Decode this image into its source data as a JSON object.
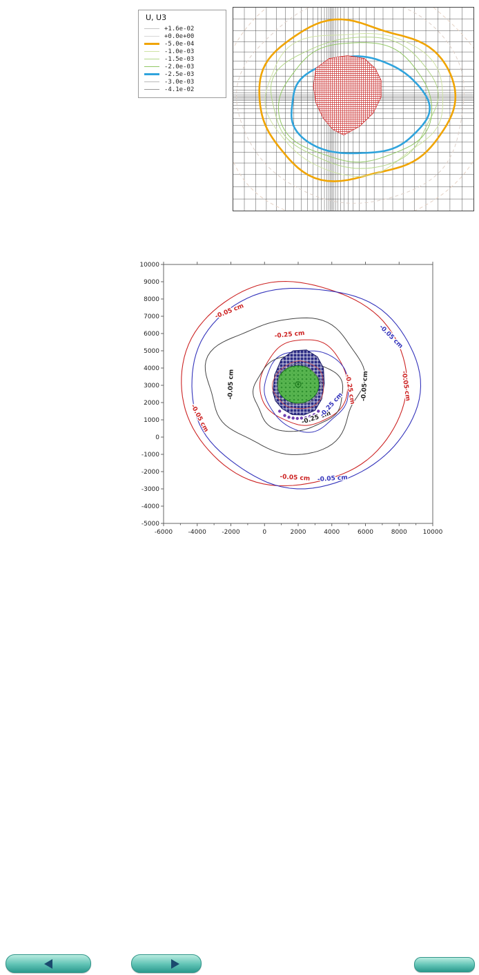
{
  "chart_data": [
    {
      "id": "fem-u3-contour-plot",
      "type": "contour",
      "legend_title": "U, U3",
      "levels": [
        {
          "label": "+1.6e-02",
          "color": "#c4c4c4",
          "weight": 1
        },
        {
          "label": "+0.0e+00",
          "color": "#d6d6d6",
          "weight": 1
        },
        {
          "label": "-5.0e-04",
          "color": "#f0a400",
          "weight": 3
        },
        {
          "label": "-1.0e-03",
          "color": "#cfe3a4",
          "weight": 1
        },
        {
          "label": "-1.5e-03",
          "color": "#b2d687",
          "weight": 1
        },
        {
          "label": "-2.0e-03",
          "color": "#90c763",
          "weight": 1
        },
        {
          "label": "-2.5e-03",
          "color": "#2fa3dc",
          "weight": 3
        },
        {
          "label": "-3.0e-03",
          "color": "#b9b9b9",
          "weight": 1
        },
        {
          "label": "-4.1e-02",
          "color": "#999999",
          "weight": 1
        }
      ],
      "mesh": {
        "v_lines": 36,
        "h_lines": 30,
        "cluster": 0.13,
        "v_center": 0.45,
        "h_center": 0.47,
        "color": "#3c3c3c"
      },
      "contours": [
        {
          "cx": 0.5,
          "cy": 0.47,
          "rx": 0.56,
          "ry": 0.6,
          "color": "#e6d2c4",
          "width": 1,
          "dash": "5 4",
          "wobble": 0.015,
          "seed": 1
        },
        {
          "cx": 0.5,
          "cy": 0.46,
          "rx": 0.47,
          "ry": 0.5,
          "color": "#ded0c8",
          "width": 1,
          "dash": "5 4",
          "wobble": 0.02,
          "seed": 11
        },
        {
          "cx": 0.505,
          "cy": 0.455,
          "rx": 0.405,
          "ry": 0.385,
          "color": "#f0a400",
          "width": 2.6,
          "wobble": 0.04,
          "seed": 2
        },
        {
          "cx": 0.505,
          "cy": 0.46,
          "rx": 0.368,
          "ry": 0.348,
          "color": "#cfe3a4",
          "width": 1,
          "wobble": 0.04,
          "seed": 3
        },
        {
          "cx": 0.507,
          "cy": 0.463,
          "rx": 0.342,
          "ry": 0.32,
          "color": "#b2d687",
          "width": 1,
          "wobble": 0.035,
          "seed": 4
        },
        {
          "cx": 0.51,
          "cy": 0.468,
          "rx": 0.316,
          "ry": 0.292,
          "color": "#90c763",
          "width": 1,
          "wobble": 0.03,
          "seed": 6
        },
        {
          "cx": 0.52,
          "cy": 0.487,
          "rx": 0.285,
          "ry": 0.237,
          "color": "#2fa3dc",
          "width": 2.6,
          "wobble": 0.028,
          "seed": 7
        }
      ],
      "red_region": {
        "color": "#cc3333",
        "points": [
          [
            0.345,
            0.3
          ],
          [
            0.4,
            0.252
          ],
          [
            0.475,
            0.238
          ],
          [
            0.545,
            0.252
          ],
          [
            0.59,
            0.3
          ],
          [
            0.615,
            0.36
          ],
          [
            0.615,
            0.44
          ],
          [
            0.582,
            0.52
          ],
          [
            0.525,
            0.585
          ],
          [
            0.46,
            0.627
          ],
          [
            0.415,
            0.6
          ],
          [
            0.375,
            0.545
          ],
          [
            0.345,
            0.47
          ],
          [
            0.334,
            0.388
          ]
        ]
      }
    },
    {
      "id": "settlement-contour-map",
      "type": "contour",
      "xlim": [
        -6000,
        10000
      ],
      "ylim": [
        -5000,
        10000
      ],
      "xticks": [
        -6000,
        -4000,
        -2000,
        0,
        2000,
        4000,
        6000,
        8000,
        10000
      ],
      "xticks_minor": [
        -5000,
        -3000,
        -1000,
        1000,
        3000,
        5000,
        7000,
        9000
      ],
      "yticks": [
        10000,
        9000,
        8000,
        7000,
        6000,
        5000,
        4000,
        3000,
        2000,
        1000,
        0,
        -1000,
        -2000,
        -3000,
        -4000,
        -5000
      ],
      "contours": [
        {
          "cx": 1700,
          "cy": 3100,
          "rx": 6700,
          "ry": 5900,
          "color": "#cc2222",
          "width": 1.1,
          "wobble": 0.012,
          "seed": 2,
          "layer": 0
        },
        {
          "cx": 2400,
          "cy": 2950,
          "rx": 6800,
          "ry": 5800,
          "color": "#3333bb",
          "width": 1.1,
          "wobble": 0.016,
          "seed": 9,
          "layer": 0
        },
        {
          "cx": 1300,
          "cy": 3050,
          "rx": 4600,
          "ry": 3900,
          "color": "#444444",
          "width": 1,
          "wobble": 0.06,
          "seed": 4,
          "layer": 0
        },
        {
          "cx": 2350,
          "cy": 3150,
          "rx": 2600,
          "ry": 2480,
          "color": "#cc2222",
          "width": 1,
          "wobble": 0.025,
          "seed": 6,
          "layer": 0
        },
        {
          "cx": 2500,
          "cy": 2750,
          "rx": 2500,
          "ry": 2350,
          "color": "#3333bb",
          "width": 1,
          "wobble": 0.035,
          "seed": 3,
          "layer": 0
        },
        {
          "cx": 1950,
          "cy": 2500,
          "rx": 2650,
          "ry": 2150,
          "color": "#444444",
          "width": 1,
          "wobble": 0.045,
          "seed": 8,
          "layer": 0
        },
        {
          "cx": 2050,
          "cy": 3000,
          "rx": 1520,
          "ry": 1380,
          "color": "#cc5555",
          "width": 0.9,
          "wobble": 0.03,
          "seed": 5,
          "layer": 1
        },
        {
          "cx": 2020,
          "cy": 3030,
          "rx": 1300,
          "ry": 1160,
          "color": "#777777",
          "width": 0.9,
          "wobble": 0.05,
          "seed": 7,
          "layer": 1
        }
      ],
      "regions": {
        "navy_polygon": [
          [
            500,
            2600
          ],
          [
            600,
            3600
          ],
          [
            1000,
            4500
          ],
          [
            1700,
            5000
          ],
          [
            2500,
            5050
          ],
          [
            3150,
            4650
          ],
          [
            3500,
            4000
          ],
          [
            3550,
            3100
          ],
          [
            3400,
            2200
          ],
          [
            3000,
            1550
          ],
          [
            2350,
            1280
          ],
          [
            1650,
            1300
          ],
          [
            1050,
            1650
          ],
          [
            650,
            2100
          ]
        ],
        "navy_color": "#2b2b85",
        "green_ellipse": {
          "cx": 2000,
          "cy": 3050,
          "rx": 1230,
          "ry": 1080
        },
        "green_color": "#57b44f",
        "green_dot_color": "#2f8f2f",
        "center_marker": {
          "x": 2000,
          "y": 3050
        },
        "purple_dots": [
          [
            1200,
            1250
          ],
          [
            1450,
            1150
          ],
          [
            1700,
            1100
          ],
          [
            1950,
            1080
          ],
          [
            2200,
            1100
          ],
          [
            2450,
            1120
          ],
          [
            2700,
            1200
          ],
          [
            2950,
            1300
          ],
          [
            900,
            1500
          ],
          [
            3200,
            1500
          ]
        ],
        "purple_color": "#7040b0"
      },
      "labels": [
        {
          "text": "-0.05 cm",
          "x": -2050,
          "y": 7200,
          "rot": -22,
          "color": "#cc2222"
        },
        {
          "text": "-0.25 cm",
          "x": 1500,
          "y": 5840,
          "rot": -6,
          "color": "#cc2222"
        },
        {
          "text": "-0.05 cm",
          "x": 7450,
          "y": 5750,
          "rot": 45,
          "color": "#3333bb"
        },
        {
          "text": "-0.05 cm",
          "x": 8300,
          "y": 2950,
          "rot": 82,
          "color": "#cc2222"
        },
        {
          "text": "-0.05 cm",
          "x": -1900,
          "y": 3050,
          "rot": -88,
          "color": "#222222"
        },
        {
          "text": "-0.05 cm",
          "x": 6050,
          "y": 2950,
          "rot": -86,
          "color": "#222222"
        },
        {
          "text": "-0.05 cm",
          "x": -3950,
          "y": 1050,
          "rot": 62,
          "color": "#cc2222"
        },
        {
          "text": "-0.25 cm",
          "x": 3100,
          "y": 1030,
          "rot": -18,
          "color": "#222222"
        },
        {
          "text": "-0.25 cm",
          "x": 4050,
          "y": 1800,
          "rot": -48,
          "color": "#3333bb"
        },
        {
          "text": "-0.25 cm",
          "x": 4980,
          "y": 2750,
          "rot": 80,
          "color": "#cc2222"
        },
        {
          "text": "-0.05 cm",
          "x": 1800,
          "y": -2450,
          "rot": 4,
          "color": "#cc2222"
        },
        {
          "text": "-0.05 cm",
          "x": 4050,
          "y": -2500,
          "rot": -4,
          "color": "#3333bb"
        }
      ]
    }
  ],
  "nav": {
    "prev_button": {
      "icon": "left-triangle"
    },
    "next_button": {
      "icon": "right-triangle"
    },
    "corner_button": {
      "icon": "blank"
    }
  },
  "colors": {
    "button_gradient_top": "#b8ece0",
    "button_gradient_bottom": "#2d9a8e",
    "button_triangle": "#1a4a6e",
    "fem_orange": "#f0a400",
    "fem_blue": "#2fa3dc",
    "contour_red": "#cc2222",
    "contour_blue": "#3333bb",
    "contour_black": "#444444"
  }
}
